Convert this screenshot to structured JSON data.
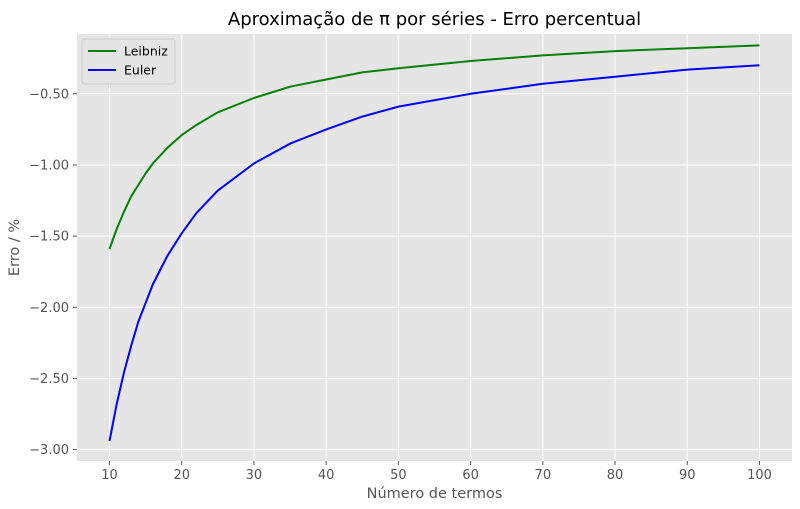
{
  "chart_data": {
    "type": "line",
    "title": "Aproximação de π por séries - Erro percentual",
    "xlabel": "Número de termos",
    "ylabel": "Erro / %",
    "xlim": [
      5.5,
      104.5
    ],
    "ylim": [
      -3.08,
      -0.08
    ],
    "xticks": [
      10,
      20,
      30,
      40,
      50,
      60,
      70,
      80,
      90,
      100
    ],
    "xtick_labels": [
      "10",
      "20",
      "30",
      "40",
      "50",
      "60",
      "70",
      "80",
      "90",
      "100"
    ],
    "yticks": [
      -3.0,
      -2.5,
      -2.0,
      -1.5,
      -1.0,
      -0.5
    ],
    "ytick_labels": [
      "−3.00",
      "−2.50",
      "−2.00",
      "−1.50",
      "−1.00",
      "−0.50"
    ],
    "grid": true,
    "legend_position": "top-left",
    "background": "#e5e5e5",
    "series": [
      {
        "name": "Leibniz",
        "color": "#008000",
        "x": [
          10,
          11,
          12,
          13,
          14,
          15,
          16,
          18,
          20,
          22,
          25,
          30,
          35,
          40,
          45,
          50,
          60,
          70,
          80,
          90,
          100
        ],
        "y": [
          -1.59,
          -1.45,
          -1.33,
          -1.22,
          -1.14,
          -1.06,
          -0.99,
          -0.88,
          -0.79,
          -0.72,
          -0.63,
          -0.53,
          -0.45,
          -0.4,
          -0.35,
          -0.32,
          -0.27,
          -0.23,
          -0.2,
          -0.18,
          -0.16
        ]
      },
      {
        "name": "Euler",
        "color": "#0000ff",
        "x": [
          10,
          11,
          12,
          13,
          14,
          15,
          16,
          18,
          20,
          22,
          25,
          30,
          35,
          40,
          45,
          50,
          60,
          70,
          80,
          90,
          100
        ],
        "y": [
          -2.94,
          -2.68,
          -2.46,
          -2.27,
          -2.1,
          -1.97,
          -1.84,
          -1.64,
          -1.48,
          -1.34,
          -1.18,
          -0.99,
          -0.85,
          -0.75,
          -0.66,
          -0.59,
          -0.5,
          -0.43,
          -0.38,
          -0.33,
          -0.3
        ]
      }
    ]
  }
}
